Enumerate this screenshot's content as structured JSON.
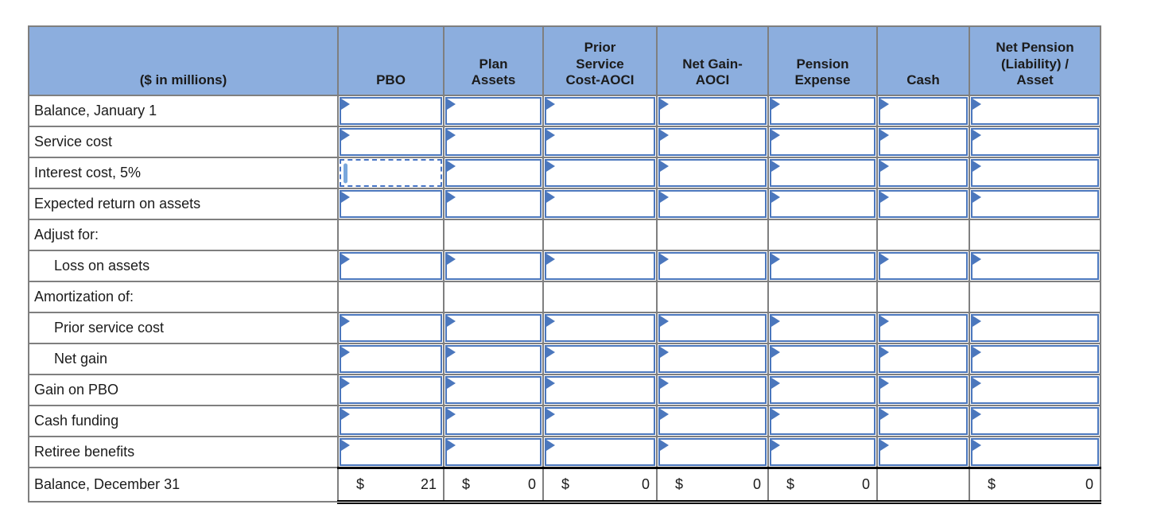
{
  "colors": {
    "header_bg": "#8caede",
    "grid_line": "#7f7f7f",
    "input_border": "#4b77bd",
    "selection_border": "#4472c4",
    "caret": "#79a7dc"
  },
  "table": {
    "columns": [
      "($ in millions)",
      "PBO",
      "Plan\nAssets",
      "Prior\nService\nCost-AOCI",
      "Net Gain-\nAOCI",
      "Pension\nExpense",
      "Cash",
      "Net Pension\n(Liability) /\nAsset"
    ],
    "rows": [
      {
        "label": "Balance, January 1",
        "type": "input",
        "indent": false
      },
      {
        "label": "Service cost",
        "type": "input",
        "indent": false
      },
      {
        "label": "Interest cost, 5%",
        "type": "input",
        "indent": false,
        "selected_col": 0
      },
      {
        "label": "Expected return on assets",
        "type": "input",
        "indent": false
      },
      {
        "label": "Adjust for:",
        "type": "section",
        "indent": false
      },
      {
        "label": "Loss on assets",
        "type": "input",
        "indent": true
      },
      {
        "label": "Amortization of:",
        "type": "section",
        "indent": false
      },
      {
        "label": "Prior service cost",
        "type": "input",
        "indent": true
      },
      {
        "label": "Net gain",
        "type": "input",
        "indent": true
      },
      {
        "label": "Gain on PBO",
        "type": "input",
        "indent": false
      },
      {
        "label": "Cash funding",
        "type": "input",
        "indent": false
      },
      {
        "label": "Retiree benefits",
        "type": "input",
        "indent": false
      },
      {
        "label": "Balance, December 31",
        "type": "total",
        "indent": false,
        "values": [
          {
            "prefix": "$",
            "amount": "21"
          },
          {
            "prefix": "$",
            "amount": "0"
          },
          {
            "prefix": "$",
            "amount": "0"
          },
          {
            "prefix": "$",
            "amount": "0"
          },
          {
            "prefix": "$",
            "amount": "0"
          },
          {
            "prefix": "",
            "amount": ""
          },
          {
            "prefix": "$",
            "amount": "0"
          }
        ]
      }
    ]
  }
}
